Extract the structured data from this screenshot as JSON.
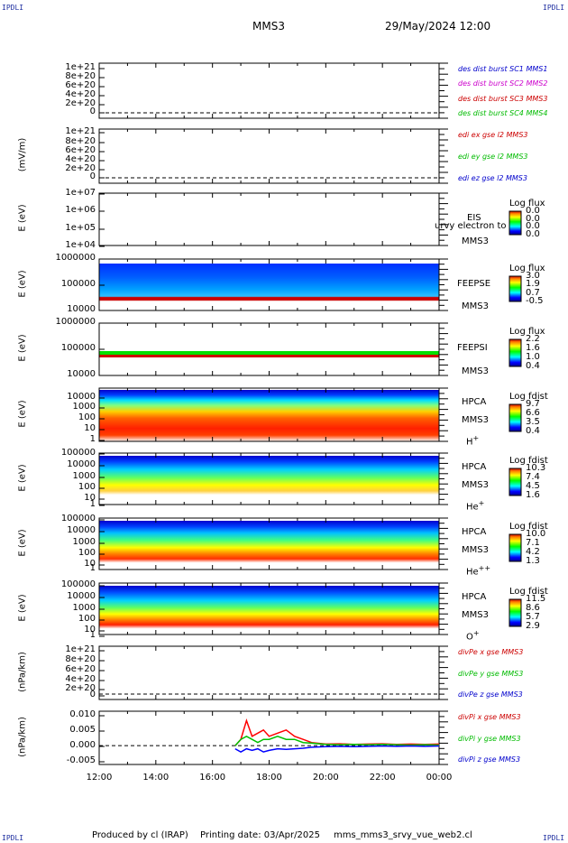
{
  "corners": {
    "tl": "IPDLI",
    "tr": "IPDLI",
    "bl": "IPDLI",
    "br": "IPDLI"
  },
  "header": {
    "spacecraft": "MMS3",
    "datetime": "29/May/2024 12:00"
  },
  "footer": {
    "produced_by": "Produced by cl (IRAP)",
    "printing_date": "Printing date: 03/Apr/2025",
    "filename": "mms_mms3_srvy_vue_web2.cl"
  },
  "chart_data": [
    {
      "type": "line",
      "ylabel": "",
      "yticks": [
        "1e+21",
        "8e+20",
        "6e+20",
        "4e+20",
        "2e+20",
        "0"
      ],
      "legend": [
        {
          "label": "des dist burst SC1 MMS1",
          "color": "#0000cc"
        },
        {
          "label": "des dist burst SC2 MMS2",
          "color": "#cc00cc"
        },
        {
          "label": "des dist burst SC3 MMS3",
          "color": "#cc0000"
        },
        {
          "label": "des dist burst SC4 MMS4",
          "color": "#00bb00"
        }
      ],
      "series": []
    },
    {
      "type": "line",
      "ylabel": "(mV/m)",
      "yticks": [
        "1e+21",
        "8e+20",
        "6e+20",
        "4e+20",
        "2e+20",
        "0"
      ],
      "legend": [
        {
          "label": "edi ex gse l2 MMS3",
          "color": "#cc0000"
        },
        {
          "label": "edi ey gse l2 MMS3",
          "color": "#00bb00"
        },
        {
          "label": "edi ez gse l2 MMS3",
          "color": "#0000cc"
        }
      ],
      "series": []
    },
    {
      "type": "heatmap",
      "ylabel": "E (eV)",
      "yticks": [
        "1e+07",
        "1e+06",
        "1e+05",
        "1e+04"
      ],
      "instrument": "EIS",
      "overlay_label": "urvy electron to",
      "spacecraft": "MMS3",
      "colorbar": {
        "title": "Log flux",
        "ticks": [
          "0.0",
          "0.0",
          "0.0",
          "0.0"
        ]
      }
    },
    {
      "type": "heatmap",
      "ylabel": "E (eV)",
      "yticks": [
        "1000000",
        "100000",
        "10000"
      ],
      "instrument": "FEEPSE",
      "spacecraft": "MMS3",
      "colorbar": {
        "title": "Log flux",
        "ticks": [
          "3.0",
          "1.9",
          "0.7",
          "-0.5"
        ]
      }
    },
    {
      "type": "heatmap",
      "ylabel": "E (eV)",
      "yticks": [
        "1000000",
        "100000",
        "10000"
      ],
      "instrument": "FEEPSI",
      "spacecraft": "MMS3",
      "colorbar": {
        "title": "Log flux",
        "ticks": [
          "2.2",
          "1.6",
          "1.0",
          "0.4"
        ]
      }
    },
    {
      "type": "heatmap",
      "ylabel": "E (eV)",
      "yticks": [
        "10000",
        "1000",
        "100",
        "10",
        "1"
      ],
      "instrument": "HPCA",
      "spacecraft": "MMS3",
      "species": "H",
      "charge": "+",
      "colorbar": {
        "title": "Log fdist",
        "ticks": [
          "9.7",
          "6.6",
          "3.5",
          "0.4"
        ]
      }
    },
    {
      "type": "heatmap",
      "ylabel": "E (eV)",
      "yticks": [
        "100000",
        "10000",
        "1000",
        "100",
        "10",
        "1"
      ],
      "instrument": "HPCA",
      "spacecraft": "MMS3",
      "species": "He",
      "charge": "+",
      "colorbar": {
        "title": "Log fdist",
        "ticks": [
          "10.3",
          "7.4",
          "4.5",
          "1.6"
        ]
      }
    },
    {
      "type": "heatmap",
      "ylabel": "E (eV)",
      "yticks": [
        "100000",
        "10000",
        "1000",
        "100",
        "10",
        "1"
      ],
      "instrument": "HPCA",
      "spacecraft": "MMS3",
      "species": "He",
      "charge": "++",
      "colorbar": {
        "title": "Log fdist",
        "ticks": [
          "10.0",
          "7.1",
          "4.2",
          "1.3"
        ]
      }
    },
    {
      "type": "heatmap",
      "ylabel": "E (eV)",
      "yticks": [
        "100000",
        "10000",
        "1000",
        "100",
        "10",
        "1"
      ],
      "instrument": "HPCA",
      "spacecraft": "MMS3",
      "species": "O",
      "charge": "+",
      "colorbar": {
        "title": "Log fdist",
        "ticks": [
          "11.5",
          "8.6",
          "5.7",
          "2.9"
        ]
      }
    },
    {
      "type": "line",
      "ylabel": "(nPa/km)",
      "yticks": [
        "1e+21",
        "8e+20",
        "6e+20",
        "4e+20",
        "2e+20",
        "0"
      ],
      "legend": [
        {
          "label": "divPe x gse MMS3",
          "color": "#cc0000"
        },
        {
          "label": "divPe y gse MMS3",
          "color": "#00bb00"
        },
        {
          "label": "divPe z gse MMS3",
          "color": "#0000cc"
        }
      ],
      "series": []
    },
    {
      "type": "line",
      "ylabel": "(nPa/km)",
      "yticks": [
        "0.010",
        "0.005",
        "0.000",
        "-0.005"
      ],
      "ylim": [
        -0.006,
        0.011
      ],
      "legend": [
        {
          "label": "divPi x gse MMS3",
          "color": "#cc0000"
        },
        {
          "label": "divPi y gse MMS3",
          "color": "#00bb00"
        },
        {
          "label": "divPi z gse MMS3",
          "color": "#0000cc"
        }
      ],
      "series": [
        {
          "name": "divPi x gse MMS3",
          "color": "#ff0000",
          "x": [
            16.8,
            17.0,
            17.2,
            17.4,
            17.6,
            17.8,
            18.0,
            18.3,
            18.6,
            18.9,
            19.2,
            19.5,
            20.0,
            20.5,
            21.0,
            21.5,
            22.0,
            22.5,
            23.0,
            23.5,
            24.0
          ],
          "y": [
            0.0,
            0.002,
            0.008,
            0.003,
            0.004,
            0.005,
            0.003,
            0.004,
            0.005,
            0.003,
            0.002,
            0.001,
            0.0005,
            0.0006,
            0.0004,
            0.0005,
            0.0006,
            0.0004,
            0.0005,
            0.0004,
            0.0005
          ]
        },
        {
          "name": "divPi y gse MMS3",
          "color": "#00c000",
          "x": [
            16.8,
            17.0,
            17.2,
            17.4,
            17.6,
            17.8,
            18.0,
            18.3,
            18.6,
            18.9,
            19.2,
            19.5,
            20.0,
            20.5,
            21.0,
            21.5,
            22.0,
            22.5,
            23.0,
            23.5,
            24.0
          ],
          "y": [
            0.0,
            0.002,
            0.003,
            0.002,
            0.001,
            0.002,
            0.002,
            0.003,
            0.002,
            0.002,
            0.001,
            0.0008,
            0.0004,
            0.0003,
            0.0004,
            0.0003,
            0.0004,
            0.0003,
            0.0002,
            0.0003,
            0.0002
          ]
        },
        {
          "name": "divPi z gse MMS3",
          "color": "#0000ff",
          "x": [
            16.8,
            17.0,
            17.2,
            17.4,
            17.6,
            17.8,
            18.0,
            18.3,
            18.6,
            18.9,
            19.2,
            19.5,
            20.0,
            20.5,
            21.0,
            21.5,
            22.0,
            22.5,
            23.0,
            23.5,
            24.0
          ],
          "y": [
            -0.001,
            -0.002,
            -0.001,
            -0.0015,
            -0.001,
            -0.002,
            -0.0015,
            -0.001,
            -0.0012,
            -0.001,
            -0.0008,
            -0.0005,
            -0.0003,
            -0.0002,
            -0.0003,
            -0.0002,
            -0.0001,
            -0.0002,
            -0.0001,
            -0.0002,
            -0.0001
          ]
        }
      ]
    }
  ],
  "xaxis": {
    "ticks": [
      "12:00",
      "14:00",
      "16:00",
      "18:00",
      "20:00",
      "22:00",
      "00:00"
    ]
  }
}
